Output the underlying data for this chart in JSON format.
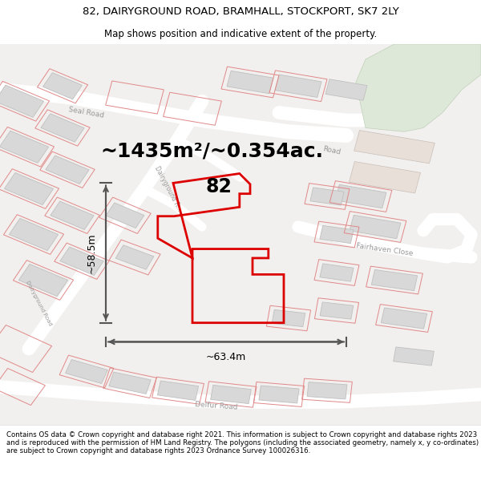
{
  "title": "82, DAIRYGROUND ROAD, BRAMHALL, STOCKPORT, SK7 2LY",
  "subtitle": "Map shows position and indicative extent of the property.",
  "area_text": "~1435m²/~0.354ac.",
  "label_82": "82",
  "width_label": "~63.4m",
  "height_label": "~58.5m",
  "footer": "Contains OS data © Crown copyright and database right 2021. This information is subject to Crown copyright and database rights 2023 and is reproduced with the permission of HM Land Registry. The polygons (including the associated geometry, namely x, y co-ordinates) are subject to Crown copyright and database rights 2023 Ordnance Survey 100026316.",
  "bg_color": "#f2f0ee",
  "road_fill": "#ffffff",
  "building_fill": "#d8d8d8",
  "building_edge": "#c0c0c0",
  "lot_edge_red": "#e08888",
  "lot_edge_lw": 0.7,
  "property_edge": "#dd0000",
  "property_lw": 2.0,
  "arrow_color": "#555555",
  "road_label_color": "#999999",
  "green_fill": "#dde8d8",
  "green_edge": "#c0d0b8",
  "tan_fill": "#e8e0d8",
  "title_fontsize": 9.5,
  "subtitle_fontsize": 8.5,
  "footer_fontsize": 6.2,
  "area_fontsize": 18,
  "num_fontsize": 17,
  "dim_fontsize": 9,
  "road_label_fontsize": 6.5
}
